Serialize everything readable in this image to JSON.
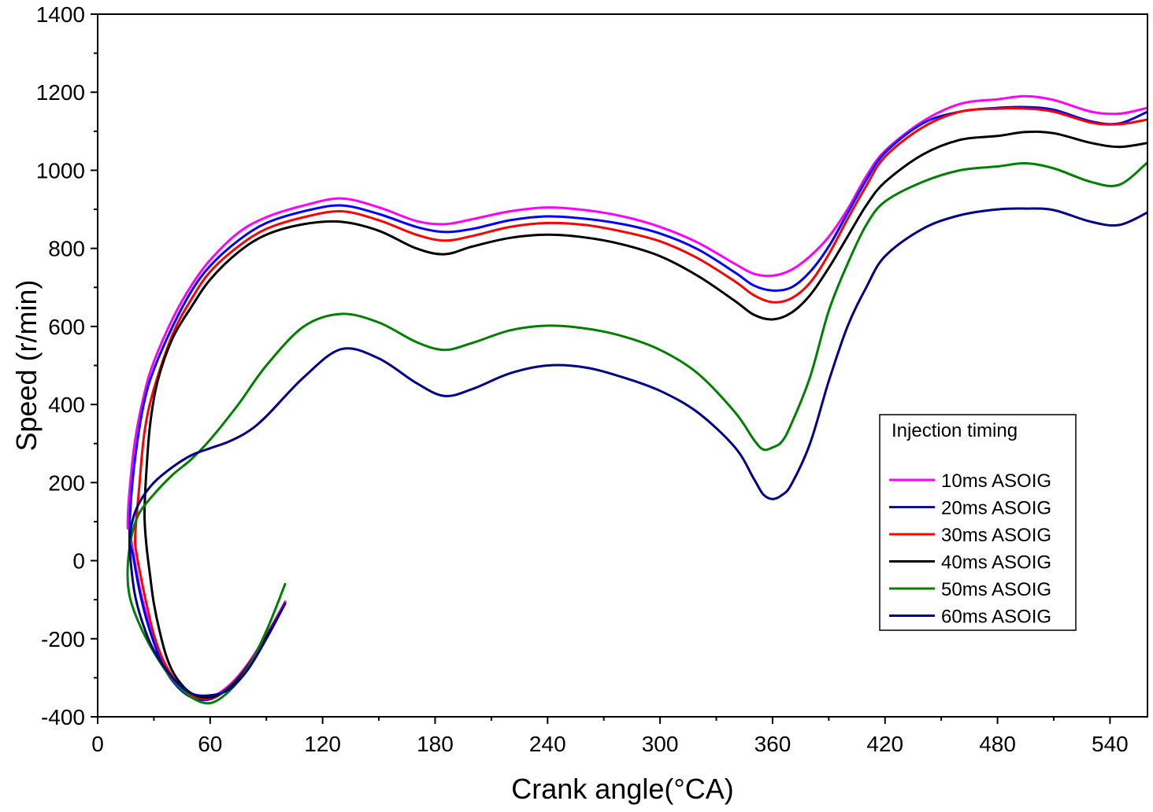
{
  "chart_data": {
    "type": "line",
    "title": "",
    "xlabel": "Crank angle(°CA)",
    "ylabel": "Speed (r/min)",
    "xlim": [
      0,
      560
    ],
    "ylim": [
      -400,
      1400
    ],
    "xticks": [
      0,
      60,
      120,
      180,
      240,
      300,
      360,
      420,
      480,
      540
    ],
    "yticks": [
      -400,
      -200,
      0,
      200,
      400,
      600,
      800,
      1000,
      1200,
      1400
    ],
    "grid": false,
    "legend": {
      "title": "Injection timing",
      "position": "right"
    },
    "series": [
      {
        "name": "10ms ASOIG",
        "color": "#ff00ff",
        "x": [
          100,
          90,
          80,
          70,
          60,
          50,
          42,
          35,
          30,
          26,
          22,
          19,
          17,
          16,
          17,
          20,
          25,
          30,
          40,
          50,
          60,
          75,
          90,
          110,
          130,
          150,
          170,
          185,
          200,
          220,
          240,
          260,
          280,
          300,
          320,
          340,
          350,
          360,
          370,
          380,
          390,
          400,
          410,
          420,
          440,
          460,
          480,
          495,
          510,
          530,
          545,
          560
        ],
        "y": [
          -105,
          -190,
          -265,
          -320,
          -350,
          -345,
          -315,
          -265,
          -205,
          -140,
          -60,
          20,
          80,
          90,
          180,
          310,
          430,
          510,
          620,
          705,
          770,
          840,
          880,
          910,
          928,
          905,
          870,
          862,
          875,
          895,
          905,
          898,
          882,
          855,
          815,
          760,
          735,
          730,
          745,
          780,
          830,
          900,
          985,
          1050,
          1125,
          1170,
          1182,
          1190,
          1180,
          1150,
          1145,
          1160
        ]
      },
      {
        "name": "20ms ASOIG",
        "color": "#0000ff",
        "x": [
          100,
          90,
          80,
          70,
          60,
          50,
          42,
          35,
          30,
          26,
          22,
          19,
          17,
          18,
          21,
          25,
          30,
          40,
          50,
          60,
          75,
          90,
          110,
          130,
          150,
          170,
          185,
          200,
          220,
          240,
          260,
          280,
          300,
          320,
          340,
          350,
          360,
          370,
          380,
          390,
          400,
          410,
          420,
          440,
          460,
          480,
          495,
          510,
          530,
          545,
          560
        ],
        "y": [
          -110,
          -195,
          -270,
          -325,
          -355,
          -350,
          -320,
          -270,
          -210,
          -150,
          -70,
          10,
          60,
          170,
          300,
          410,
          490,
          600,
          690,
          755,
          820,
          865,
          895,
          910,
          888,
          855,
          842,
          850,
          872,
          882,
          876,
          862,
          838,
          798,
          738,
          705,
          692,
          700,
          740,
          805,
          890,
          975,
          1045,
          1120,
          1150,
          1160,
          1162,
          1155,
          1125,
          1120,
          1150
        ]
      },
      {
        "name": "30ms ASOIG",
        "color": "#ff0000",
        "x": [
          100,
          90,
          80,
          70,
          60,
          50,
          42,
          35,
          30,
          26,
          23,
          21,
          20,
          22,
          25,
          30,
          40,
          50,
          60,
          75,
          90,
          110,
          130,
          150,
          170,
          185,
          200,
          220,
          240,
          260,
          280,
          300,
          320,
          340,
          350,
          360,
          370,
          380,
          390,
          400,
          410,
          420,
          440,
          460,
          480,
          495,
          510,
          530,
          545,
          560
        ],
        "y": [
          -110,
          -195,
          -270,
          -325,
          -352,
          -345,
          -310,
          -255,
          -190,
          -110,
          -40,
          10,
          60,
          180,
          330,
          440,
          580,
          670,
          740,
          805,
          850,
          880,
          895,
          872,
          835,
          820,
          832,
          855,
          865,
          860,
          843,
          818,
          775,
          715,
          680,
          662,
          672,
          712,
          785,
          875,
          960,
          1035,
          1110,
          1150,
          1158,
          1158,
          1150,
          1122,
          1118,
          1130
        ]
      },
      {
        "name": "40ms ASOIG",
        "color": "#000000",
        "x": [
          100,
          90,
          80,
          70,
          60,
          50,
          42,
          37,
          33,
          30,
          28,
          26,
          25,
          26,
          28,
          32,
          40,
          50,
          60,
          75,
          90,
          110,
          130,
          150,
          170,
          185,
          200,
          220,
          240,
          260,
          280,
          300,
          320,
          340,
          350,
          360,
          370,
          380,
          390,
          400,
          410,
          420,
          440,
          460,
          480,
          495,
          510,
          530,
          545,
          560
        ],
        "y": [
          -110,
          -195,
          -270,
          -325,
          -350,
          -340,
          -300,
          -250,
          -180,
          -110,
          -40,
          40,
          120,
          230,
          350,
          460,
          570,
          650,
          720,
          790,
          835,
          862,
          868,
          845,
          800,
          785,
          805,
          827,
          835,
          828,
          810,
          780,
          730,
          665,
          630,
          618,
          635,
          680,
          750,
          830,
          910,
          970,
          1040,
          1078,
          1088,
          1098,
          1095,
          1070,
          1060,
          1070
        ]
      },
      {
        "name": "50ms ASOIG",
        "color": "#008000",
        "x": [
          100,
          90,
          80,
          70,
          60,
          50,
          40,
          30,
          22,
          17,
          16,
          18,
          22,
          30,
          40,
          50,
          60,
          75,
          90,
          110,
          130,
          150,
          170,
          185,
          200,
          220,
          240,
          260,
          280,
          300,
          320,
          340,
          350,
          355,
          360,
          365,
          370,
          380,
          390,
          400,
          410,
          420,
          440,
          460,
          480,
          495,
          510,
          530,
          545,
          560
        ],
        "y": [
          -60,
          -180,
          -275,
          -335,
          -365,
          -350,
          -305,
          -235,
          -160,
          -90,
          -20,
          60,
          120,
          170,
          220,
          260,
          310,
          400,
          500,
          600,
          632,
          610,
          560,
          540,
          558,
          590,
          602,
          595,
          575,
          540,
          480,
          380,
          310,
          285,
          290,
          305,
          350,
          470,
          640,
          760,
          860,
          920,
          970,
          1000,
          1010,
          1018,
          1005,
          970,
          963,
          1020
        ]
      },
      {
        "name": "60ms ASOIG",
        "color": "#00008b",
        "x": [
          100,
          90,
          80,
          70,
          60,
          50,
          40,
          30,
          24,
          20,
          18,
          17,
          19,
          23,
          30,
          40,
          50,
          60,
          70,
          80,
          90,
          110,
          130,
          150,
          170,
          185,
          200,
          220,
          240,
          260,
          280,
          300,
          320,
          340,
          350,
          355,
          360,
          365,
          370,
          380,
          390,
          400,
          410,
          420,
          440,
          460,
          480,
          495,
          510,
          530,
          545,
          560
        ],
        "y": [
          -110,
          -200,
          -280,
          -330,
          -345,
          -340,
          -300,
          -230,
          -160,
          -90,
          -20,
          50,
          110,
          155,
          200,
          240,
          270,
          288,
          305,
          330,
          370,
          470,
          542,
          518,
          455,
          422,
          440,
          480,
          500,
          495,
          470,
          435,
          380,
          290,
          210,
          170,
          158,
          168,
          195,
          300,
          460,
          600,
          700,
          780,
          850,
          885,
          900,
          902,
          898,
          868,
          860,
          892
        ]
      }
    ]
  }
}
